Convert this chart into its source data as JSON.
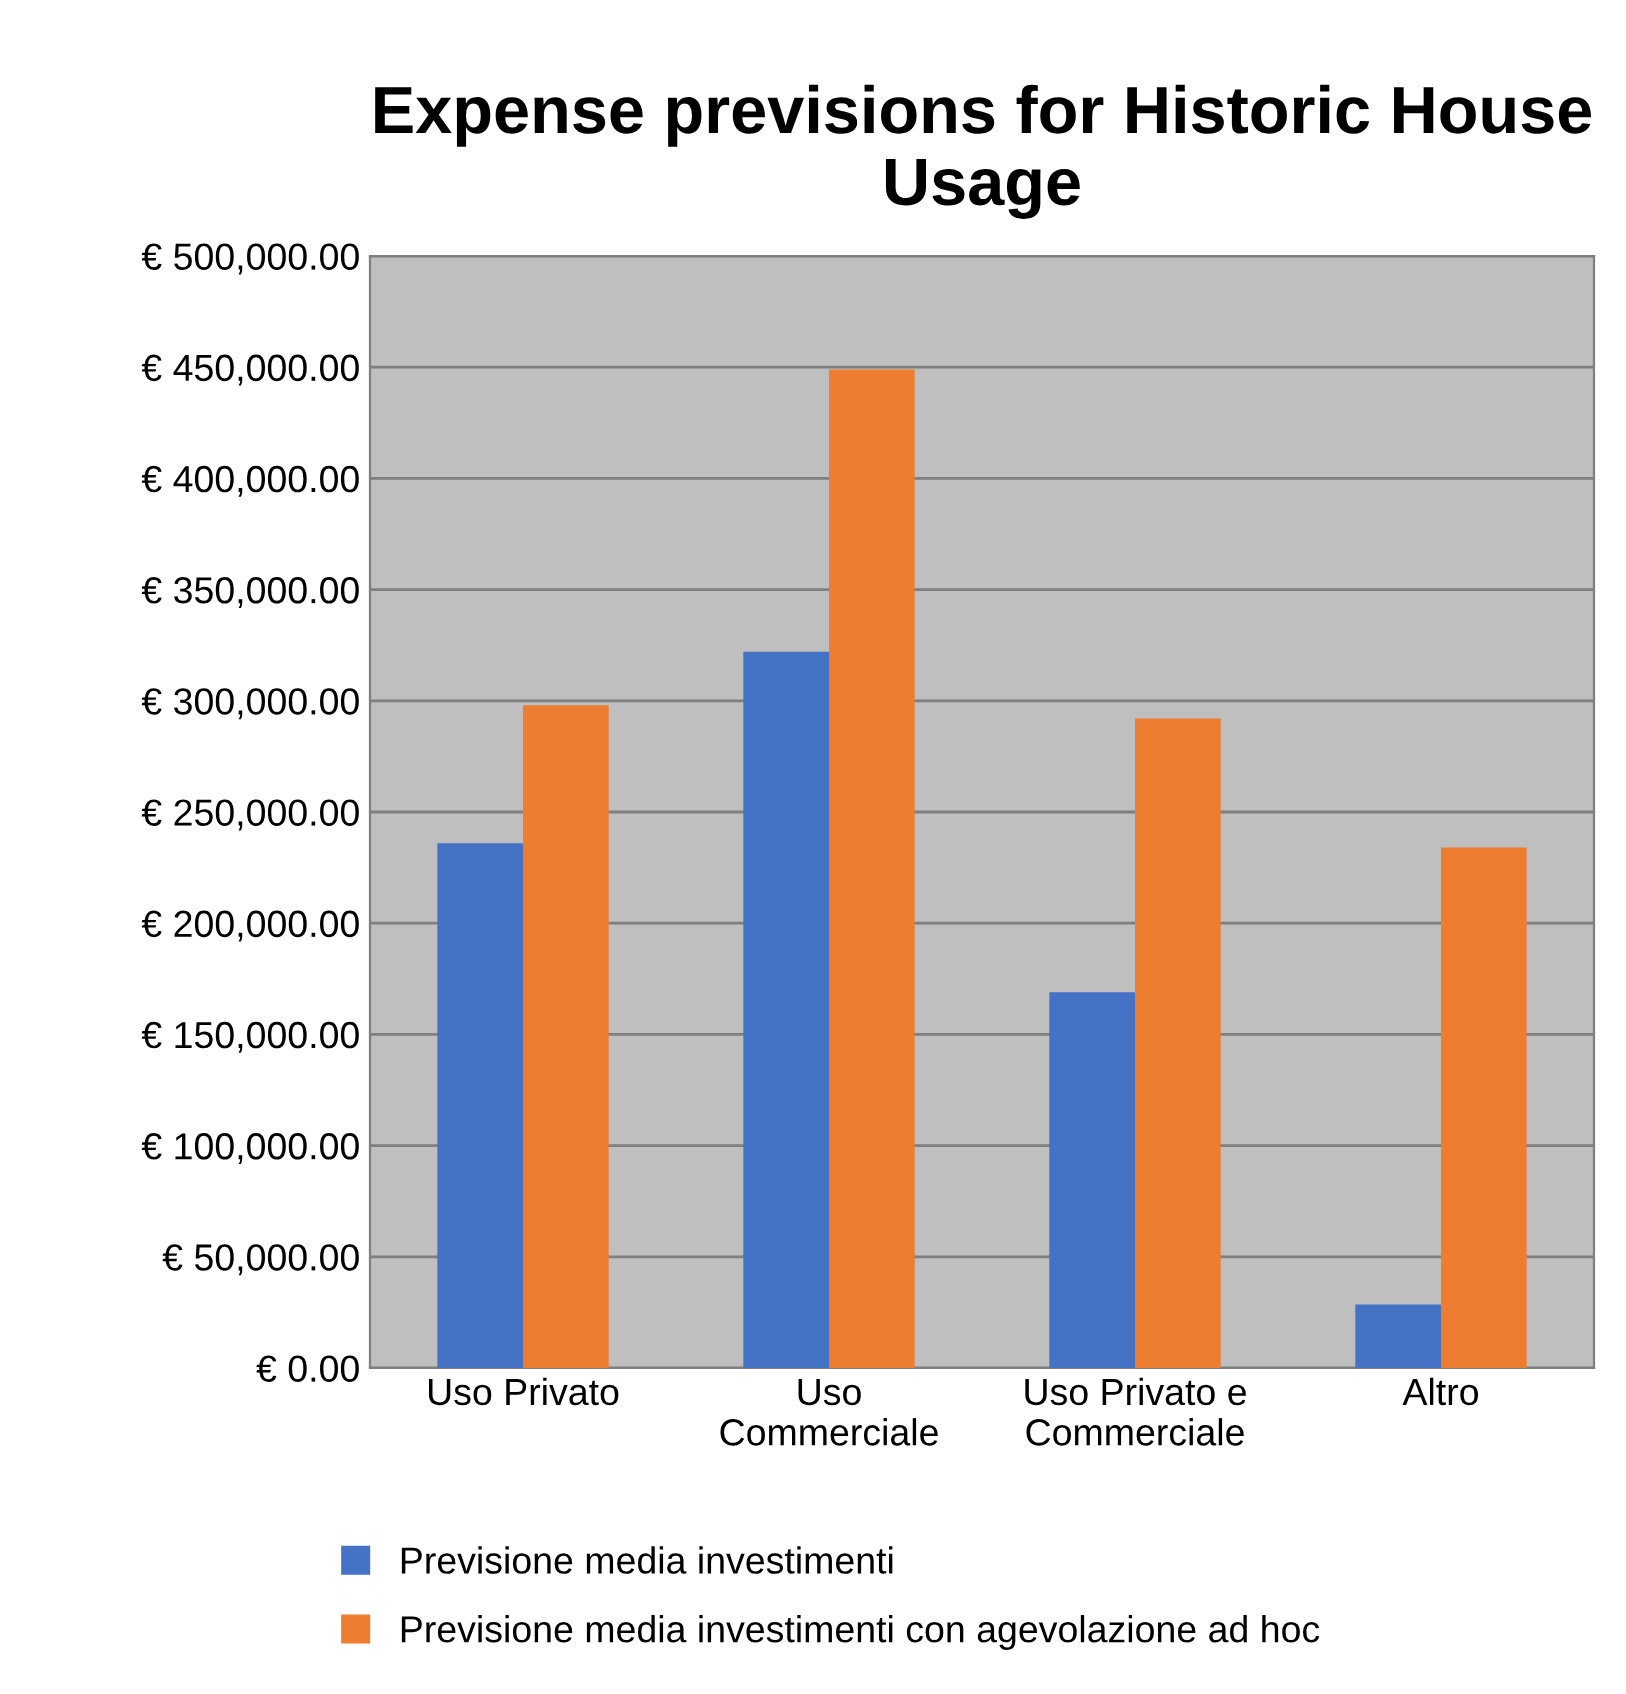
{
  "chart_data": {
    "type": "bar",
    "title": "Expense previsions for Historic House Usage",
    "categories": [
      "Uso Privato",
      "Uso\nCommerciale",
      "Uso Privato e\nCommerciale",
      "Altro"
    ],
    "series": [
      {
        "name": "Previsione media investimenti",
        "color": "#4472c4",
        "values": [
          236000,
          322000,
          169000,
          28600
        ]
      },
      {
        "name": "Previsione media investimenti con agevolazione ad hoc",
        "color": "#ed7d31",
        "values": [
          298000,
          449000,
          292000,
          234000
        ]
      }
    ],
    "ylim": [
      0,
      500000
    ],
    "yticks": [
      {
        "value": 0,
        "label": "€ 0.00"
      },
      {
        "value": 50000,
        "label": "€ 50,000.00"
      },
      {
        "value": 100000,
        "label": "€ 100,000.00"
      },
      {
        "value": 150000,
        "label": "€ 150,000.00"
      },
      {
        "value": 200000,
        "label": "€ 200,000.00"
      },
      {
        "value": 250000,
        "label": "€ 250,000.00"
      },
      {
        "value": 300000,
        "label": "€ 300,000.00"
      },
      {
        "value": 350000,
        "label": "€ 350,000.00"
      },
      {
        "value": 400000,
        "label": "€ 400,000.00"
      },
      {
        "value": 450000,
        "label": "€ 450,000.00"
      },
      {
        "value": 500000,
        "label": "€ 500,000.00"
      }
    ],
    "grid": "y",
    "legend": "bottom"
  }
}
